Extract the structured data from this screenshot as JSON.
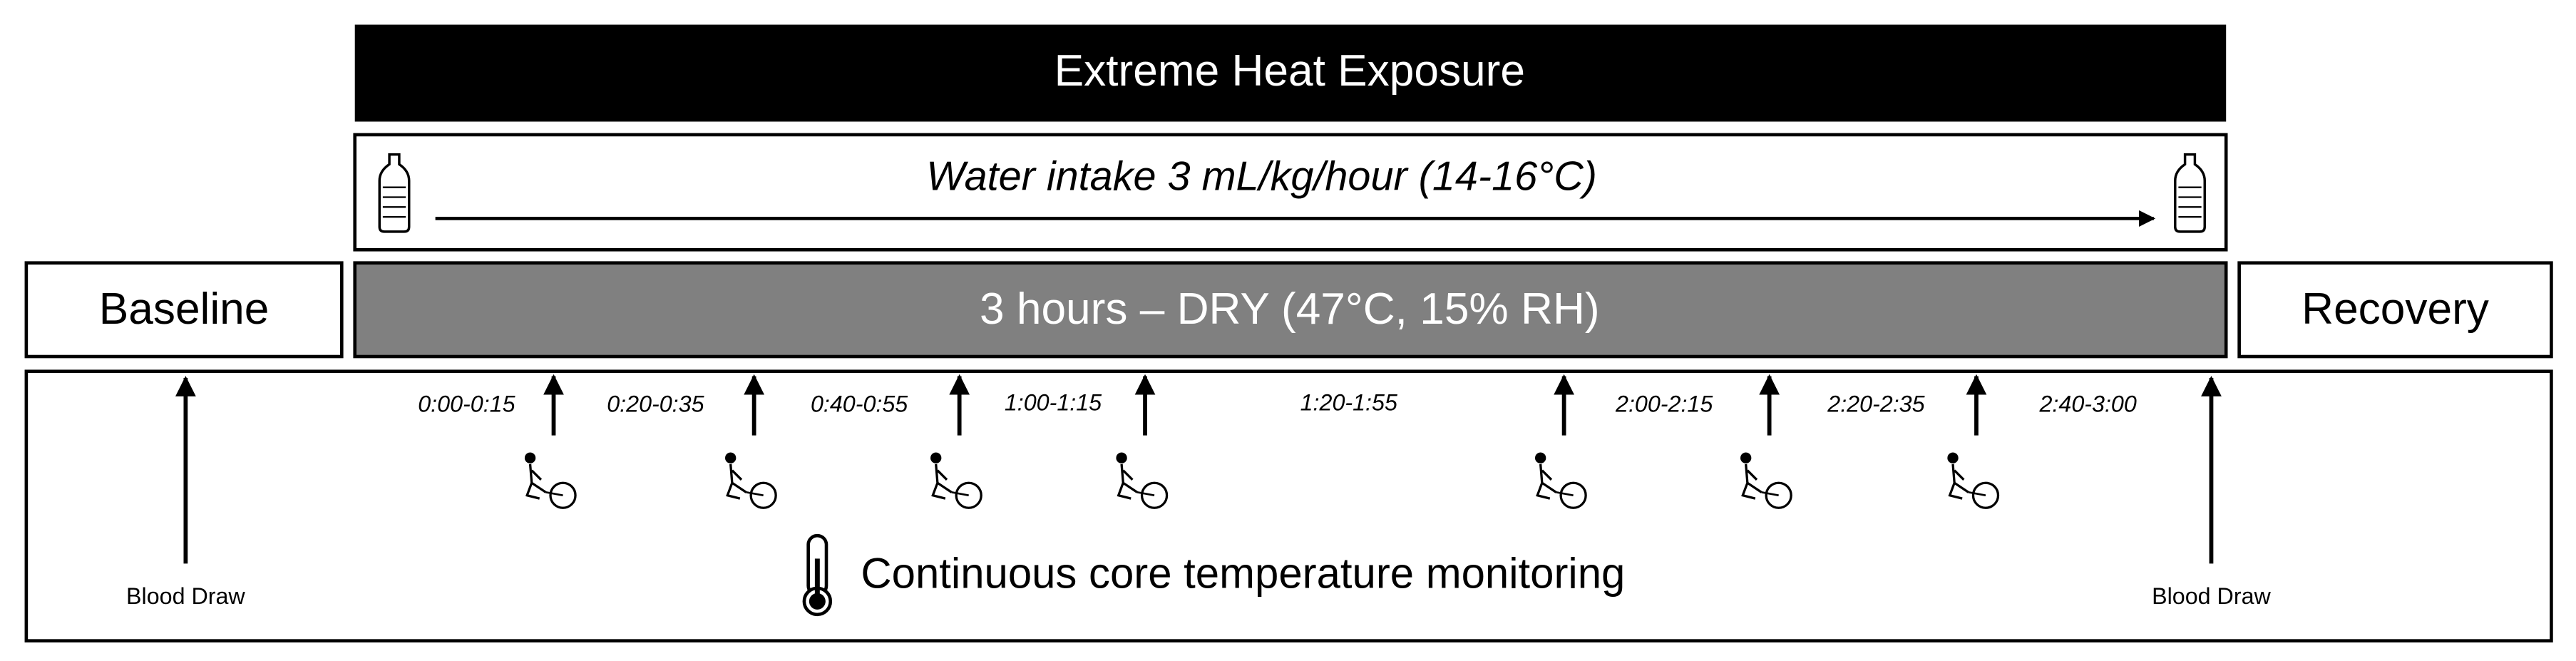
{
  "header": {
    "title": "Extreme Heat Exposure"
  },
  "water": {
    "label": "Water intake 3 mL/kg/hour (14-16°C)"
  },
  "phases": {
    "baseline": "Baseline",
    "exposure": "3 hours – DRY (47°C, 15% RH)",
    "recovery": "Recovery"
  },
  "intervals": [
    "0:00-0:15",
    "0:20-0:35",
    "0:40-0:55",
    "1:00-1:15",
    "1:20-1:55",
    "2:00-2:15",
    "2:20-2:35",
    "2:40-3:00"
  ],
  "monitoring": "Continuous core temperature monitoring",
  "blood_draws": [
    "Blood Draw",
    "Blood Draw"
  ]
}
